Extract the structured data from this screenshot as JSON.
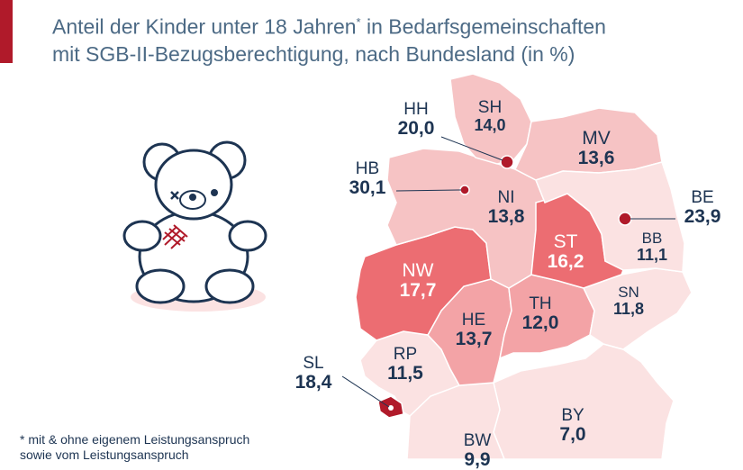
{
  "header": {
    "subtitle_line1": "Anteil der Kinder unter 18 Jahren",
    "subtitle_sup": "*",
    "subtitle_line1_tail": " in Bedarfsgemeinschaften",
    "subtitle_line2": "mit SGB-II-Bezugsberechtigung, nach Bundesland (in %)"
  },
  "states": [
    {
      "code": "SH",
      "value": "14,0"
    },
    {
      "code": "HH",
      "value": "20,0"
    },
    {
      "code": "MV",
      "value": "13,6"
    },
    {
      "code": "HB",
      "value": "30,1"
    },
    {
      "code": "NI",
      "value": "13,8"
    },
    {
      "code": "BE",
      "value": "23,9"
    },
    {
      "code": "BB",
      "value": "11,1"
    },
    {
      "code": "ST",
      "value": "16,2"
    },
    {
      "code": "NW",
      "value": "17,7"
    },
    {
      "code": "SN",
      "value": "11,8"
    },
    {
      "code": "TH",
      "value": "12,0"
    },
    {
      "code": "HE",
      "value": "13,7"
    },
    {
      "code": "RP",
      "value": "11,5"
    },
    {
      "code": "SL",
      "value": "18,4"
    },
    {
      "code": "BY",
      "value": "7,0"
    },
    {
      "code": "BW",
      "value": "9,9"
    }
  ],
  "footnote": {
    "line1": "* mit & ohne eigenem Leistungsanspruch",
    "line2": "sowie vom Leistungsanspruch"
  },
  "colors": {
    "accent": "#b01a2a",
    "title_text": "#4c6a85",
    "label_text": "#1d3452",
    "level_lowest": "#fbe2e2",
    "level_low": "#f6c3c4",
    "level_mid": "#f3a3a6",
    "level_high": "#ec6d72",
    "level_highest": "#b01a2a"
  },
  "icons": [
    "teddy-bear-icon",
    "hamburg-marker-icon",
    "bremen-marker-icon",
    "berlin-marker-icon",
    "saarland-marker-icon"
  ]
}
